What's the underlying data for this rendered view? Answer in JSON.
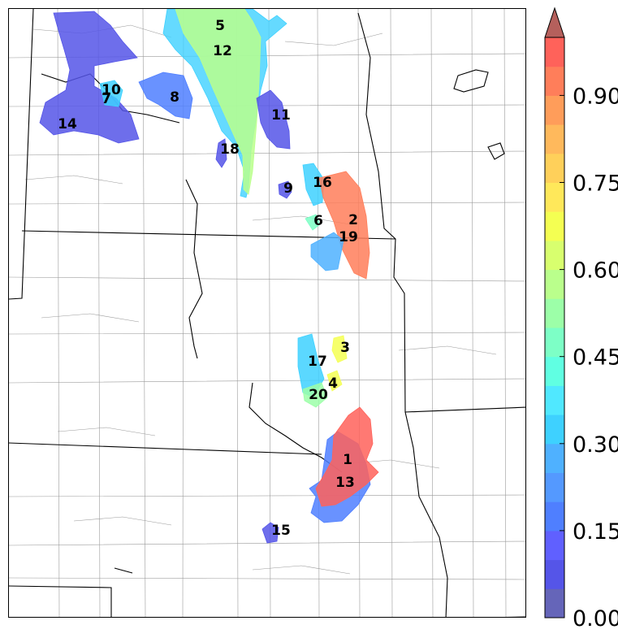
{
  "colorbar": {
    "ticks": [
      "0.00",
      "0.15",
      "0.30",
      "0.45",
      "0.60",
      "0.75",
      "0.90"
    ],
    "min": 0.0,
    "max": 1.0,
    "step": 0.05,
    "extend": "max",
    "extend_color": "#b5605c",
    "colors": [
      "#6565b9",
      "#5555e8",
      "#6060ff",
      "#4f7fff",
      "#5499ff",
      "#4fb1ff",
      "#3ed1ff",
      "#50e8ff",
      "#60ffe2",
      "#7dffc6",
      "#9cffa8",
      "#baff8c",
      "#d8ff6e",
      "#f4ff52",
      "#ffe85a",
      "#ffd05a",
      "#ffb95c",
      "#ff9d5a",
      "#ff7e5a",
      "#ff625a"
    ]
  },
  "objects": [
    {
      "id": "1",
      "value": 0.93
    },
    {
      "id": "2",
      "value": 0.78
    },
    {
      "id": "3",
      "value": 0.6
    },
    {
      "id": "4",
      "value": 0.57
    },
    {
      "id": "5",
      "value": 0.55
    },
    {
      "id": "6",
      "value": 0.4
    },
    {
      "id": "7",
      "value": 0.3
    },
    {
      "id": "8",
      "value": 0.25
    },
    {
      "id": "9",
      "value": 0.1
    },
    {
      "id": "10",
      "value": 0.4
    },
    {
      "id": "11",
      "value": 0.12
    },
    {
      "id": "12",
      "value": 0.55
    },
    {
      "id": "13",
      "value": 0.22
    },
    {
      "id": "14",
      "value": 0.12
    },
    {
      "id": "15",
      "value": 0.18
    },
    {
      "id": "16",
      "value": 0.33
    },
    {
      "id": "17",
      "value": 0.33
    },
    {
      "id": "18",
      "value": 0.1
    },
    {
      "id": "19",
      "value": 0.3
    },
    {
      "id": "20",
      "value": 0.5
    }
  ]
}
